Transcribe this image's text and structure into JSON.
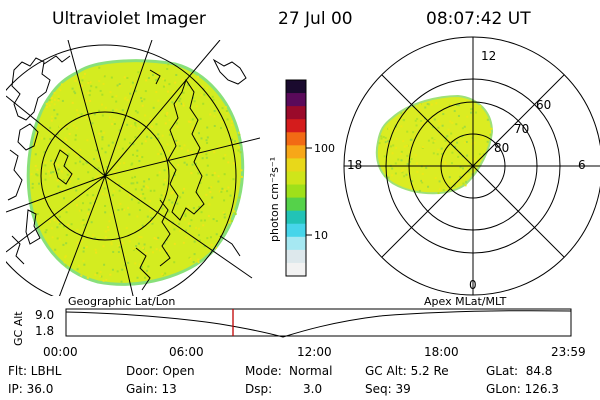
{
  "header": {
    "instrument": "Ultraviolet Imager",
    "date": "27 Jul 00",
    "time": "08:07:42 UT"
  },
  "colorbar": {
    "unit_label": "photon cm⁻²s⁻¹",
    "ticks": [
      "100",
      "10"
    ],
    "colors": [
      "#1a0a2e",
      "#5a0a5a",
      "#9a0a2a",
      "#d41c1c",
      "#f26a14",
      "#f7a718",
      "#e8d81a",
      "#cfe51a",
      "#9fe01a",
      "#55d24a",
      "#22c3b6",
      "#47d5ea",
      "#a6e8f2",
      "#dde8ec",
      "#f2f2f2"
    ]
  },
  "geo_map": {
    "label": "Geographic Lat/Lon",
    "fill_color": "#d4ec20",
    "border_color": "#88e07a"
  },
  "polar_plot": {
    "label": "Apex MLat/MLT",
    "mlt_labels": {
      "top": "12",
      "bottom": "0",
      "left": "18",
      "right": "6"
    },
    "lat_labels": [
      "60",
      "70",
      "80"
    ],
    "fill_color": "#dbec22"
  },
  "altitude_strip": {
    "ylabel": "GC Alt",
    "ytop": "9.0",
    "ybottom": "1.8",
    "time_ticks": [
      "00:00",
      "06:00",
      "12:00",
      "18:00",
      "23:59"
    ],
    "current_marker_color": "#c00000"
  },
  "footer": {
    "filter": "Flt: LBHL",
    "ip": "IP: 36.0",
    "door": "Door: Open",
    "gain": "Gain: 13",
    "mode_label": "Mode:",
    "mode_value": "Normal",
    "dsp_label": "Dsp:",
    "dsp_value": "3.0",
    "gc_alt": "GC Alt: 5.2 Re",
    "seq": "Seq: 39",
    "glat": "GLat:  84.8",
    "glon": "GLon: 126.3"
  }
}
